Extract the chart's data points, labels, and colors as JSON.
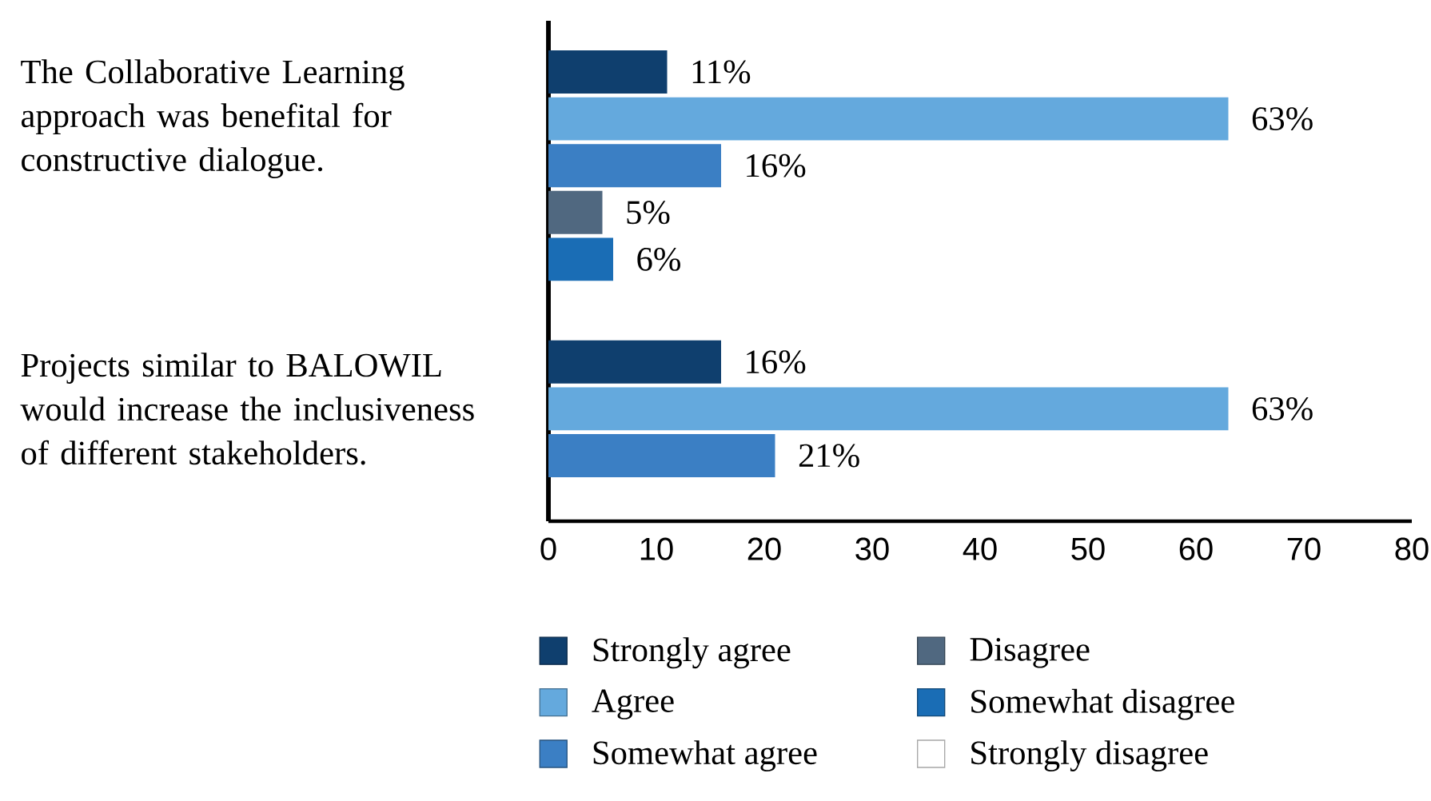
{
  "chart_data": {
    "type": "bar",
    "orientation": "horizontal",
    "categories": [
      "The Collaborative Learning approach was benefital for constructive dialogue.",
      "Projects similar to BALOWIL would increase the inclusiveness of different stakeholders."
    ],
    "series": [
      {
        "name": "Strongly agree",
        "color": "#0f3f6e",
        "values": [
          11,
          16
        ],
        "value_labels": [
          "11%",
          "16%"
        ]
      },
      {
        "name": "Agree",
        "color": "#64a9dd",
        "values": [
          63,
          63
        ],
        "value_labels": [
          "63%",
          "63%"
        ]
      },
      {
        "name": "Somewhat agree",
        "color": "#3b7fc4",
        "values": [
          16,
          21
        ],
        "value_labels": [
          "16%",
          "21%"
        ]
      },
      {
        "name": "Disagree",
        "color": "#506880",
        "values": [
          5,
          null
        ],
        "value_labels": [
          "5%",
          null
        ]
      },
      {
        "name": "Somewhat disagree",
        "color": "#1a6db5",
        "values": [
          6,
          null
        ],
        "value_labels": [
          "6%",
          null
        ]
      },
      {
        "name": "Strongly disagree",
        "color": "#ffffff",
        "values": [
          null,
          null
        ]
      }
    ],
    "xlim": [
      0,
      80
    ],
    "xticks": [
      0,
      10,
      20,
      30,
      40,
      50,
      60,
      70,
      80
    ],
    "legend": "bottom",
    "grid": false
  }
}
